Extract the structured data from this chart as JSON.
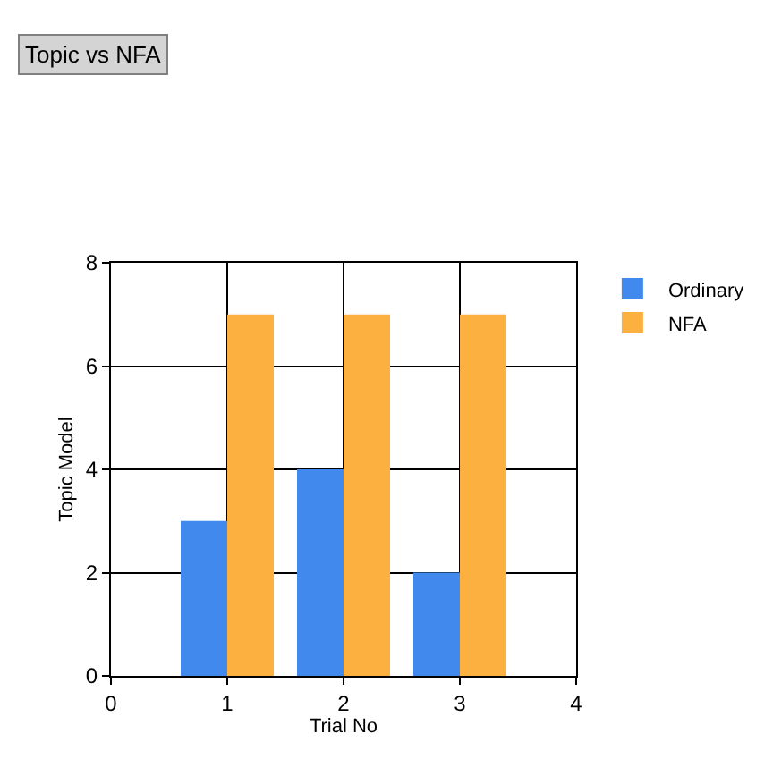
{
  "chart_data": {
    "type": "bar",
    "title": "Topic vs NFA",
    "xlabel": "Trial No",
    "ylabel": "Topic Model",
    "x": [
      1,
      2,
      3
    ],
    "series": [
      {
        "name": "Ordinary",
        "color": "#4189ec",
        "values": [
          3,
          4,
          2
        ]
      },
      {
        "name": "NFA",
        "color": "#fbb040",
        "values": [
          7,
          7,
          7
        ]
      }
    ],
    "xlim": [
      0,
      4
    ],
    "xticks": [
      0,
      1,
      2,
      3,
      4
    ],
    "ylim": [
      0,
      8
    ],
    "yticks": [
      0,
      2,
      4,
      6,
      8
    ],
    "grid": true,
    "legend": "top right"
  }
}
